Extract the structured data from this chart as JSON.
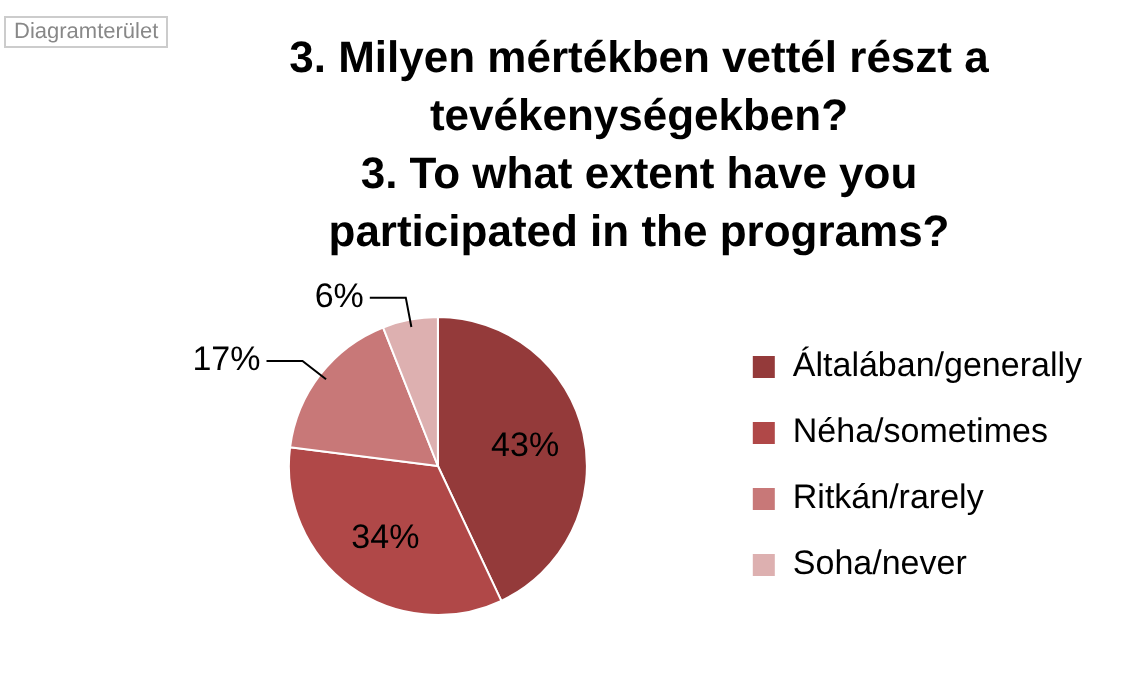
{
  "chart_data": {
    "type": "pie",
    "title": "3. Milyen mértékben vettél részt a tevékenységekben?",
    "subtitle": "3. To what extent have you participated in the programs?",
    "annotations": [
      "Diagramterület"
    ],
    "categories": [
      "Általában/generally",
      "Néha/sometimes",
      "Ritkán/rarely",
      "Soha/never"
    ],
    "values": [
      43,
      34,
      17,
      6
    ],
    "colors": [
      "#943a3a",
      "#b04848",
      "#c87878",
      "#ddb0b0"
    ],
    "value_labels": [
      "43%",
      "34%",
      "17%",
      "6%"
    ],
    "legend": "right"
  }
}
